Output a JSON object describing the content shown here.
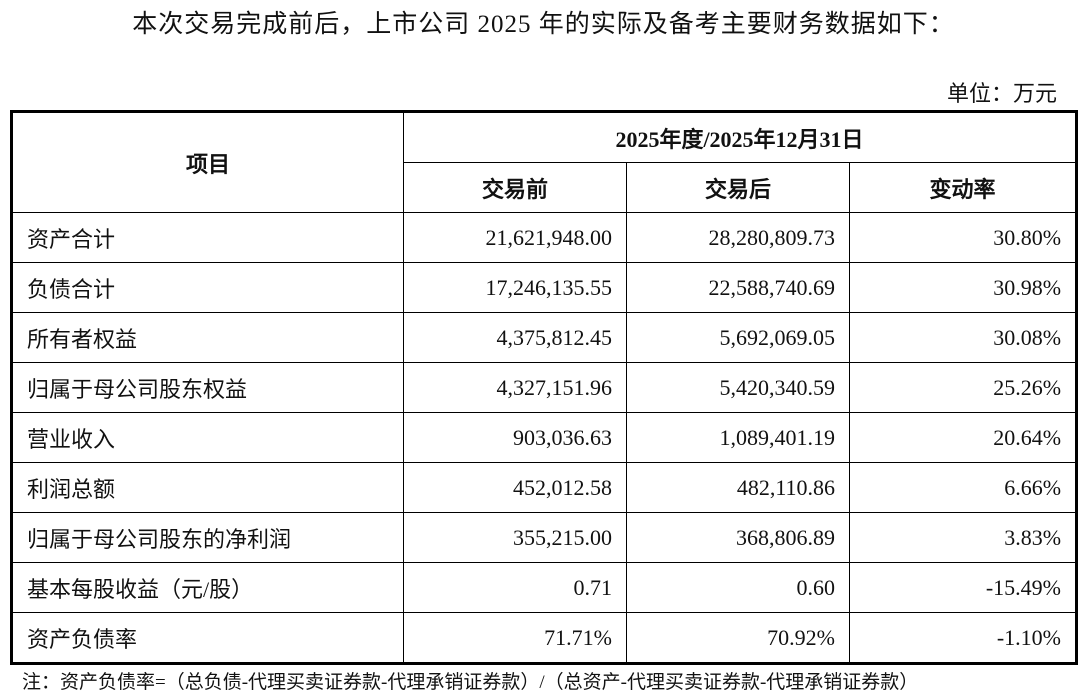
{
  "intro": "本次交易完成前后，上市公司 2025 年的实际及备考主要财务数据如下：",
  "unit": "单位：万元",
  "table": {
    "item_header": "项目",
    "period_header": "2025年度/2025年12月31日",
    "columns": [
      "交易前",
      "交易后",
      "变动率"
    ],
    "rows": [
      [
        "资产合计",
        "21,621,948.00",
        "28,280,809.73",
        "30.80%"
      ],
      [
        "负债合计",
        "17,246,135.55",
        "22,588,740.69",
        "30.98%"
      ],
      [
        "所有者权益",
        "4,375,812.45",
        "5,692,069.05",
        "30.08%"
      ],
      [
        "归属于母公司股东权益",
        "4,327,151.96",
        "5,420,340.59",
        "25.26%"
      ],
      [
        "营业收入",
        "903,036.63",
        "1,089,401.19",
        "20.64%"
      ],
      [
        "利润总额",
        "452,012.58",
        "482,110.86",
        "6.66%"
      ],
      [
        "归属于母公司股东的净利润",
        "355,215.00",
        "368,806.89",
        "3.83%"
      ],
      [
        "基本每股收益（元/股）",
        "0.71",
        "0.60",
        "-15.49%"
      ],
      [
        "资产负债率",
        "71.71%",
        "70.92%",
        "-1.10%"
      ]
    ]
  },
  "note": "注：资产负债率=（总负债-代理买卖证券款-代理承销证券款）/（总资产-代理买卖证券款-代理承销证券款）"
}
